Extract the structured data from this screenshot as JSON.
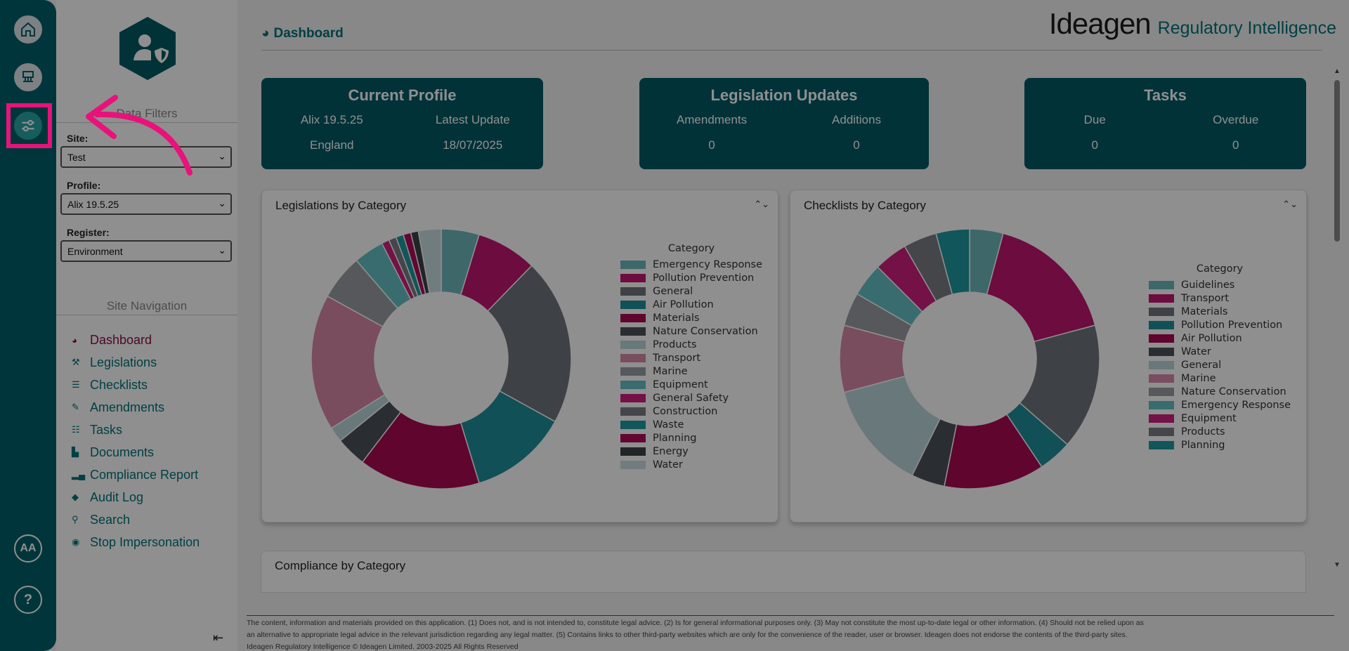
{
  "rail": {
    "aa_label": "AA",
    "help_label": "?"
  },
  "filters": {
    "heading": "Data Filters",
    "site_label": "Site:",
    "site_value": "Test",
    "profile_label": "Profile:",
    "profile_value": "Alix 19.5.25",
    "register_label": "Register:",
    "register_value": "Environment"
  },
  "site_navigation": {
    "heading": "Site Navigation",
    "items": [
      {
        "label": "Dashboard",
        "icon": "tachometer-icon"
      },
      {
        "label": "Legislations",
        "icon": "gavel-icon"
      },
      {
        "label": "Checklists",
        "icon": "list-icon"
      },
      {
        "label": "Amendments",
        "icon": "edit-icon"
      },
      {
        "label": "Tasks",
        "icon": "tasks-icon"
      },
      {
        "label": "Documents",
        "icon": "file-icon"
      },
      {
        "label": "Compliance Report",
        "icon": "bar-chart-icon"
      },
      {
        "label": "Audit Log",
        "icon": "tags-icon"
      },
      {
        "label": "Search",
        "icon": "search-icon"
      },
      {
        "label": "Stop Impersonation",
        "icon": "stop-circle-icon"
      }
    ]
  },
  "header": {
    "page_title": "Dashboard",
    "logo_name": "Ideagen",
    "logo_product": "Regulatory Intelligence"
  },
  "cards": {
    "profile": {
      "title": "Current Profile",
      "col1_label": "Alix 19.5.25",
      "col2_label": "Latest Update",
      "col1_value": "England",
      "col2_value": "18/07/2025"
    },
    "legislation": {
      "title": "Legislation Updates",
      "col1_label": "Amendments",
      "col2_label": "Additions",
      "col1_value": "0",
      "col2_value": "0"
    },
    "tasks": {
      "title": "Tasks",
      "col1_label": "Due",
      "col2_label": "Overdue",
      "col1_value": "0",
      "col2_value": "0"
    }
  },
  "charts_panels": {
    "legislations_title": "Legislations by Category",
    "checklists_title": "Checklists by Category",
    "compliance_title": "Compliance by Category",
    "legend_title": "Category"
  },
  "chart_data": [
    {
      "type": "pie",
      "title": "Legislations by Category",
      "legend_title": "Category",
      "categories": [
        "Emergency Response",
        "Pollution Prevention",
        "General",
        "Air Pollution",
        "Materials",
        "Nature Conservation",
        "Products",
        "Transport",
        "Marine",
        "Equipment",
        "General Safety",
        "Construction",
        "Waste",
        "Planning",
        "Energy",
        "Water"
      ],
      "values": [
        5,
        8,
        22,
        13,
        16,
        4,
        2,
        18,
        6,
        4,
        1,
        1,
        1,
        1,
        1,
        3
      ],
      "colors": [
        "#6fb8bb",
        "#c2176f",
        "#6f747c",
        "#1f8f99",
        "#aa0a52",
        "#4b5159",
        "#bcd7da",
        "#d88aa8",
        "#9b9ea3",
        "#66c1c4",
        "#cf1f7d",
        "#7a7e84",
        "#1d9aa1",
        "#b00c5a",
        "#3d4248",
        "#c9dde0"
      ]
    },
    {
      "type": "pie",
      "title": "Checklists by Category",
      "legend_title": "Category",
      "categories": [
        "Guidelines",
        "Transport",
        "Materials",
        "Pollution Prevention",
        "Air Pollution",
        "Water",
        "General",
        "Marine",
        "Nature Conservation",
        "Emergency Response",
        "Equipment",
        "Products",
        "Planning"
      ],
      "values": [
        4,
        16,
        15,
        4,
        12,
        4,
        13,
        8,
        4,
        4,
        4,
        4,
        4
      ],
      "colors": [
        "#6fb8bb",
        "#c2176f",
        "#6f747c",
        "#1f8f99",
        "#aa0a52",
        "#4b5159",
        "#bcd7da",
        "#d88aa8",
        "#9b9ea3",
        "#66c1c4",
        "#cf1f7d",
        "#7a7e84",
        "#1d9aa1"
      ]
    }
  ],
  "footer": {
    "line1": "The content, information and materials provided on this application. (1) Does not, and is not intended to, constitute legal advice. (2) Is for general informational purposes only. (3) May not constitute the most up-to-date legal or other information. (4) Should not be relied upon as",
    "line2": "an alternative to appropriate legal advice in the relevant jurisdiction regarding any legal matter. (5) Contains links to other third-party websites which are only for the convenience of the reader, user or browser. Ideagen does not endorse the contents of the third-party sites.",
    "line3": "Ideagen Regulatory Intelligence © Ideagen Limited. 2003-2025 All Rights Reserved"
  },
  "colors": {
    "teal_dark": "#005a64",
    "teal": "#00737a",
    "highlight": "#e8127a",
    "active_nav": "#8a0f44"
  }
}
